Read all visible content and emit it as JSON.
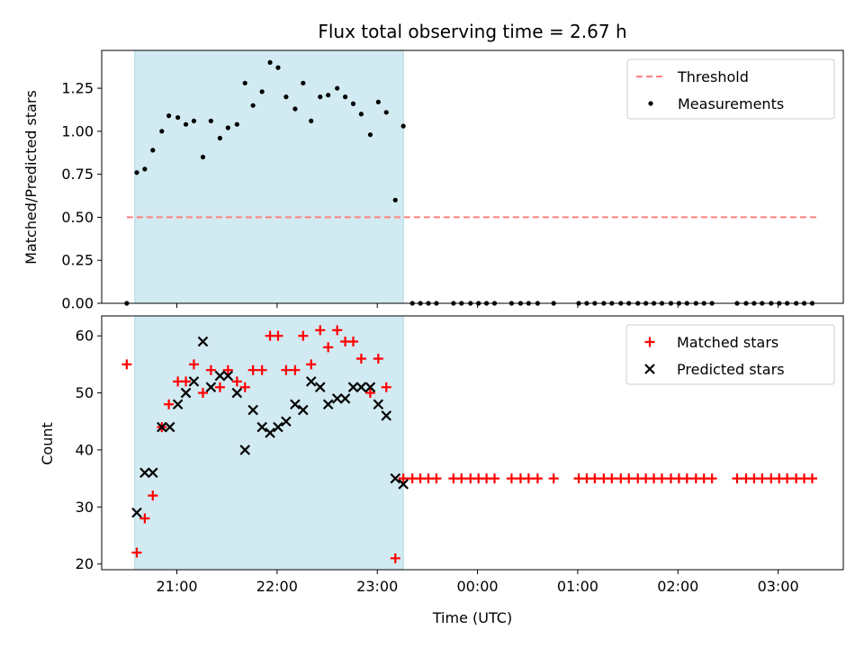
{
  "chart_data": {
    "title": "Flux total observing time = 2.67 h",
    "xlabel": "Time (UTC)",
    "x_ticks": [
      "21:00",
      "22:00",
      "23:00",
      "00:00",
      "01:00",
      "02:00",
      "03:00"
    ],
    "x_tick_hours": [
      21,
      22,
      23,
      24,
      25,
      26,
      27
    ],
    "xlim_hours": [
      20.25,
      27.65
    ],
    "shaded_span_hours": [
      20.58,
      23.26
    ],
    "colors": {
      "shade": "#add8e6",
      "threshold": "#ff8080",
      "matched": "#ff0000",
      "predicted": "#000000",
      "measurement": "#000000"
    },
    "panels": [
      {
        "type": "scatter",
        "ylabel": "Matched/Predicted stars",
        "ylim": [
          0,
          1.47
        ],
        "y_ticks": [
          0.0,
          0.25,
          0.5,
          0.75,
          1.0,
          1.25
        ],
        "y_tick_labels": [
          "0.00",
          "0.25",
          "0.50",
          "0.75",
          "1.00",
          "1.25"
        ],
        "threshold": {
          "name": "Threshold",
          "value": 0.5,
          "x_range": [
            20.5,
            27.4
          ]
        },
        "series": [
          {
            "name": "Measurements",
            "marker": "dot",
            "points": [
              [
                20.5,
                0.0
              ],
              [
                20.6,
                0.76
              ],
              [
                20.68,
                0.78
              ],
              [
                20.76,
                0.89
              ],
              [
                20.85,
                1.0
              ],
              [
                20.92,
                1.09
              ],
              [
                21.01,
                1.08
              ],
              [
                21.09,
                1.04
              ],
              [
                21.17,
                1.06
              ],
              [
                21.26,
                0.85
              ],
              [
                21.34,
                1.06
              ],
              [
                21.43,
                0.96
              ],
              [
                21.51,
                1.02
              ],
              [
                21.6,
                1.04
              ],
              [
                21.68,
                1.28
              ],
              [
                21.76,
                1.15
              ],
              [
                21.85,
                1.23
              ],
              [
                21.93,
                1.4
              ],
              [
                22.01,
                1.37
              ],
              [
                22.09,
                1.2
              ],
              [
                22.18,
                1.13
              ],
              [
                22.26,
                1.28
              ],
              [
                22.34,
                1.06
              ],
              [
                22.43,
                1.2
              ],
              [
                22.51,
                1.21
              ],
              [
                22.6,
                1.25
              ],
              [
                22.68,
                1.2
              ],
              [
                22.76,
                1.16
              ],
              [
                22.84,
                1.1
              ],
              [
                22.93,
                0.98
              ],
              [
                23.01,
                1.17
              ],
              [
                23.09,
                1.11
              ],
              [
                23.18,
                0.6
              ],
              [
                23.26,
                1.03
              ],
              [
                23.35,
                0.0
              ],
              [
                23.43,
                0.0
              ],
              [
                23.51,
                0.0
              ],
              [
                23.59,
                0.0
              ],
              [
                23.76,
                0.0
              ],
              [
                23.84,
                0.0
              ],
              [
                23.93,
                0.0
              ],
              [
                24.01,
                0.0
              ],
              [
                24.09,
                0.0
              ],
              [
                24.17,
                0.0
              ],
              [
                24.34,
                0.0
              ],
              [
                24.43,
                0.0
              ],
              [
                24.51,
                0.0
              ],
              [
                24.6,
                0.0
              ],
              [
                24.76,
                0.0
              ],
              [
                25.01,
                0.0
              ],
              [
                25.09,
                0.0
              ],
              [
                25.17,
                0.0
              ],
              [
                25.26,
                0.0
              ],
              [
                25.34,
                0.0
              ],
              [
                25.43,
                0.0
              ],
              [
                25.51,
                0.0
              ],
              [
                25.6,
                0.0
              ],
              [
                25.68,
                0.0
              ],
              [
                25.76,
                0.0
              ],
              [
                25.84,
                0.0
              ],
              [
                25.93,
                0.0
              ],
              [
                26.01,
                0.0
              ],
              [
                26.09,
                0.0
              ],
              [
                26.18,
                0.0
              ],
              [
                26.26,
                0.0
              ],
              [
                26.34,
                0.0
              ],
              [
                26.59,
                0.0
              ],
              [
                26.68,
                0.0
              ],
              [
                26.76,
                0.0
              ],
              [
                26.84,
                0.0
              ],
              [
                26.93,
                0.0
              ],
              [
                27.01,
                0.0
              ],
              [
                27.09,
                0.0
              ],
              [
                27.18,
                0.0
              ],
              [
                27.26,
                0.0
              ],
              [
                27.34,
                0.0
              ]
            ]
          }
        ],
        "legend": [
          "Threshold",
          "Measurements"
        ]
      },
      {
        "type": "scatter",
        "ylabel": "Count",
        "ylim": [
          19,
          63.5
        ],
        "y_ticks": [
          20,
          30,
          40,
          50,
          60
        ],
        "y_tick_labels": [
          "20",
          "30",
          "40",
          "50",
          "60"
        ],
        "series": [
          {
            "name": "Matched stars",
            "marker": "plus",
            "points": [
              [
                20.5,
                55
              ],
              [
                20.6,
                22
              ],
              [
                20.68,
                28
              ],
              [
                20.76,
                32
              ],
              [
                20.85,
                44
              ],
              [
                20.92,
                48
              ],
              [
                21.01,
                52
              ],
              [
                21.09,
                52
              ],
              [
                21.17,
                55
              ],
              [
                21.26,
                50
              ],
              [
                21.34,
                54
              ],
              [
                21.43,
                51
              ],
              [
                21.51,
                54
              ],
              [
                21.6,
                52
              ],
              [
                21.68,
                51
              ],
              [
                21.76,
                54
              ],
              [
                21.85,
                54
              ],
              [
                21.93,
                60
              ],
              [
                22.01,
                60
              ],
              [
                22.09,
                54
              ],
              [
                22.18,
                54
              ],
              [
                22.26,
                60
              ],
              [
                22.34,
                55
              ],
              [
                22.43,
                61
              ],
              [
                22.51,
                58
              ],
              [
                22.6,
                61
              ],
              [
                22.68,
                59
              ],
              [
                22.76,
                59
              ],
              [
                22.84,
                56
              ],
              [
                22.93,
                50
              ],
              [
                23.01,
                56
              ],
              [
                23.09,
                51
              ],
              [
                23.18,
                21
              ],
              [
                23.26,
                35
              ],
              [
                23.35,
                35
              ],
              [
                23.43,
                35
              ],
              [
                23.51,
                35
              ],
              [
                23.59,
                35
              ],
              [
                23.76,
                35
              ],
              [
                23.84,
                35
              ],
              [
                23.93,
                35
              ],
              [
                24.01,
                35
              ],
              [
                24.09,
                35
              ],
              [
                24.17,
                35
              ],
              [
                24.34,
                35
              ],
              [
                24.43,
                35
              ],
              [
                24.51,
                35
              ],
              [
                24.6,
                35
              ],
              [
                24.76,
                35
              ],
              [
                25.01,
                35
              ],
              [
                25.09,
                35
              ],
              [
                25.17,
                35
              ],
              [
                25.26,
                35
              ],
              [
                25.34,
                35
              ],
              [
                25.43,
                35
              ],
              [
                25.51,
                35
              ],
              [
                25.6,
                35
              ],
              [
                25.68,
                35
              ],
              [
                25.76,
                35
              ],
              [
                25.84,
                35
              ],
              [
                25.93,
                35
              ],
              [
                26.01,
                35
              ],
              [
                26.09,
                35
              ],
              [
                26.18,
                35
              ],
              [
                26.26,
                35
              ],
              [
                26.34,
                35
              ],
              [
                26.59,
                35
              ],
              [
                26.68,
                35
              ],
              [
                26.76,
                35
              ],
              [
                26.84,
                35
              ],
              [
                26.93,
                35
              ],
              [
                27.01,
                35
              ],
              [
                27.09,
                35
              ],
              [
                27.18,
                35
              ],
              [
                27.26,
                35
              ],
              [
                27.34,
                35
              ]
            ]
          },
          {
            "name": "Predicted stars",
            "marker": "x",
            "points": [
              [
                20.6,
                29
              ],
              [
                20.68,
                36
              ],
              [
                20.76,
                36
              ],
              [
                20.85,
                44
              ],
              [
                20.93,
                44
              ],
              [
                21.01,
                48
              ],
              [
                21.09,
                50
              ],
              [
                21.17,
                52
              ],
              [
                21.26,
                59
              ],
              [
                21.34,
                51
              ],
              [
                21.43,
                53
              ],
              [
                21.51,
                53
              ],
              [
                21.6,
                50
              ],
              [
                21.68,
                40
              ],
              [
                21.76,
                47
              ],
              [
                21.85,
                44
              ],
              [
                21.93,
                43
              ],
              [
                22.01,
                44
              ],
              [
                22.09,
                45
              ],
              [
                22.18,
                48
              ],
              [
                22.26,
                47
              ],
              [
                22.34,
                52
              ],
              [
                22.43,
                51
              ],
              [
                22.51,
                48
              ],
              [
                22.6,
                49
              ],
              [
                22.68,
                49
              ],
              [
                22.76,
                51
              ],
              [
                22.84,
                51
              ],
              [
                22.93,
                51
              ],
              [
                23.01,
                48
              ],
              [
                23.09,
                46
              ],
              [
                23.18,
                35
              ],
              [
                23.26,
                34
              ]
            ]
          }
        ],
        "legend": [
          "Matched stars",
          "Predicted stars"
        ]
      }
    ]
  }
}
